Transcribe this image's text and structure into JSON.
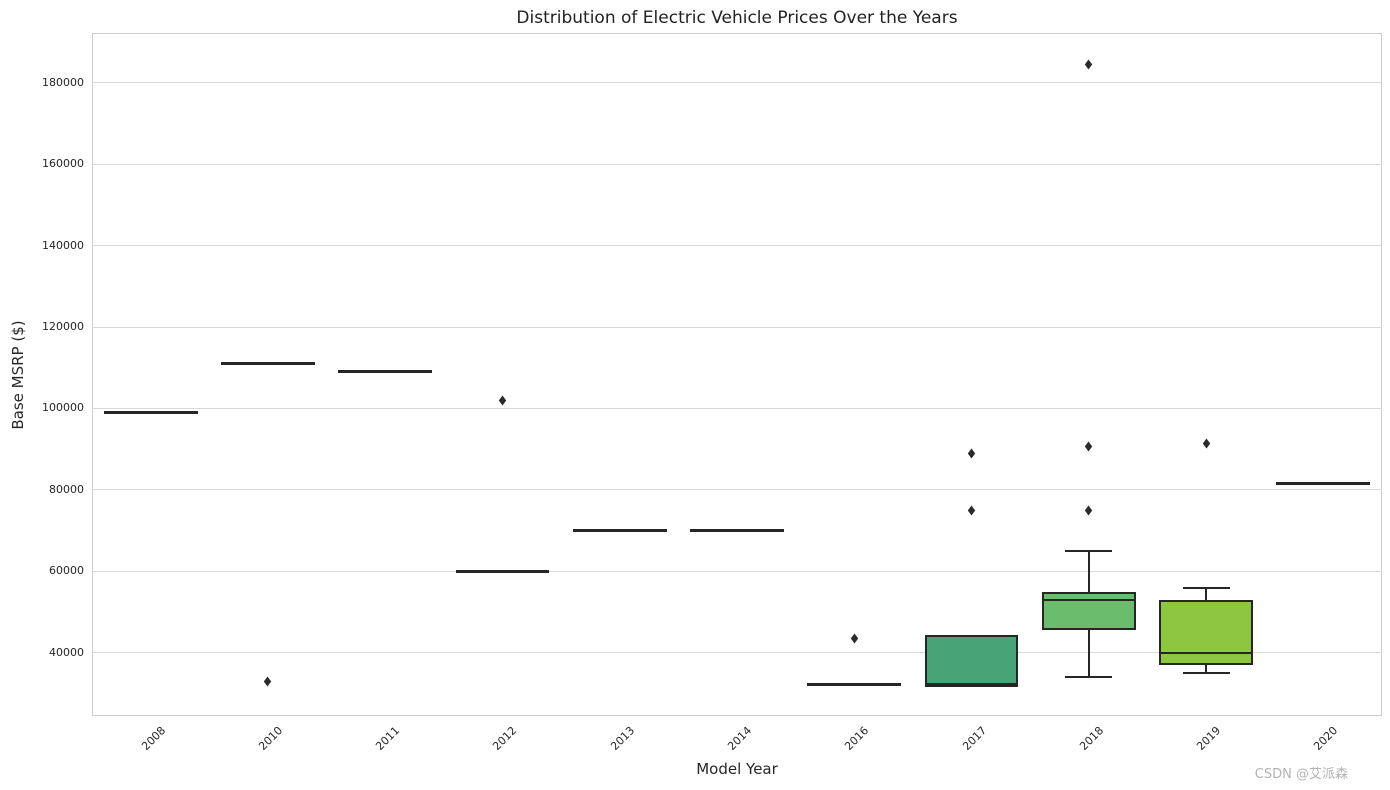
{
  "header": {
    "title": "Distribution of Electric Vehicle Prices Over the Years"
  },
  "watermark": {
    "text": "CSDN @艾派森",
    "color": "#b3b3b3"
  },
  "chart_data": {
    "type": "box",
    "title": "Distribution of Electric Vehicle Prices Over the Years",
    "xlabel": "Model Year",
    "ylabel": "Base MSRP ($)",
    "categories": [
      "2008",
      "2010",
      "2011",
      "2012",
      "2013",
      "2014",
      "2016",
      "2017",
      "2018",
      "2019",
      "2020"
    ],
    "ylim": [
      24450,
      192100
    ],
    "yticks": [
      40000,
      60000,
      80000,
      100000,
      120000,
      140000,
      160000,
      180000
    ],
    "grid": "horizontal-only",
    "legend": "none",
    "series": [
      {
        "year": "2008",
        "whisker_low": 99000,
        "q1": 99000,
        "median": 99000,
        "q3": 99000,
        "whisker_high": 99000,
        "outliers": []
      },
      {
        "year": "2010",
        "whisker_low": 111000,
        "q1": 111000,
        "median": 111000,
        "q3": 111000,
        "whisker_high": 111000,
        "outliers": [
          33000
        ]
      },
      {
        "year": "2011",
        "whisker_low": 109000,
        "q1": 109000,
        "median": 109000,
        "q3": 109000,
        "whisker_high": 109000,
        "outliers": []
      },
      {
        "year": "2012",
        "whisker_low": 59900,
        "q1": 59900,
        "median": 59900,
        "q3": 59900,
        "whisker_high": 59900,
        "outliers": [
          102000
        ]
      },
      {
        "year": "2013",
        "whisker_low": 70000,
        "q1": 70000,
        "median": 70000,
        "q3": 70000,
        "whisker_high": 70000,
        "outliers": []
      },
      {
        "year": "2014",
        "whisker_low": 70000,
        "q1": 70000,
        "median": 70000,
        "q3": 70000,
        "whisker_high": 70000,
        "outliers": []
      },
      {
        "year": "2016",
        "whisker_low": 32200,
        "q1": 32200,
        "median": 32200,
        "q3": 32200,
        "whisker_high": 32200,
        "outliers": [
          43400
        ]
      },
      {
        "year": "2017",
        "whisker_low": 32000,
        "q1": 32000,
        "median": 32000,
        "q3": 44300,
        "whisker_high": 44300,
        "outliers": [
          75000,
          89000
        ]
      },
      {
        "year": "2018",
        "whisker_low": 34000,
        "q1": 45500,
        "median": 53000,
        "q3": 55000,
        "whisker_high": 65000,
        "outliers": [
          75000,
          90700,
          184400
        ]
      },
      {
        "year": "2019",
        "whisker_low": 35000,
        "q1": 37000,
        "median": 39900,
        "q3": 53000,
        "whisker_high": 55900,
        "outliers": [
          91300
        ]
      },
      {
        "year": "2020",
        "whisker_low": 81600,
        "q1": 81600,
        "median": 81600,
        "q3": 81600,
        "whisker_high": 81600,
        "outliers": []
      }
    ],
    "box_fill_colors": {
      "2017": "#46a476",
      "2018": "#6cbc6e",
      "2019": "#8dc63f"
    },
    "style_colors": {
      "box_edge": "#262626",
      "median_line": "#262626",
      "whisker": "#262626",
      "flier": "#2b2b2b",
      "grid": "#d9d9d9",
      "spine": "#cccccc",
      "text": "#262626",
      "background": "#ffffff"
    }
  }
}
